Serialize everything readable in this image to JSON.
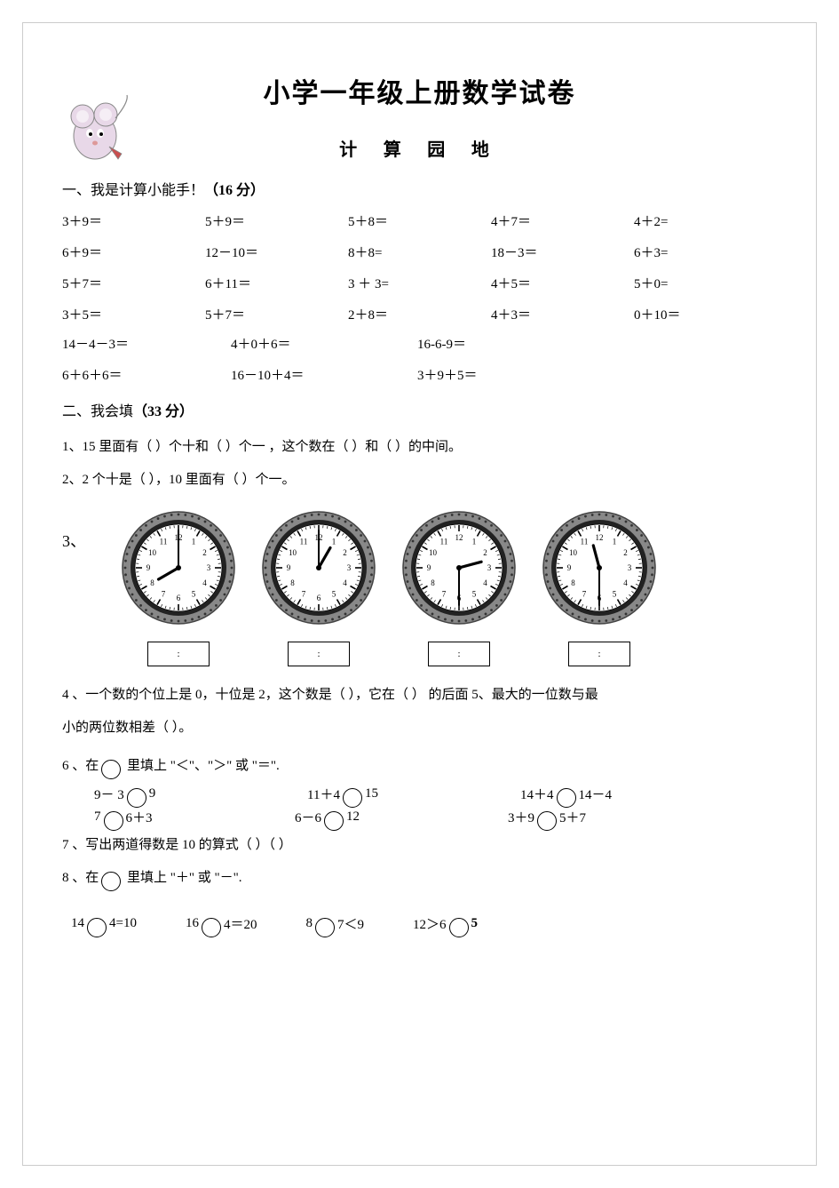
{
  "title": "小学一年级上册数学试卷",
  "subtitle": "计 算 园 地",
  "section1": {
    "heading": "一、我是计算小能手！",
    "points": "（16 分）"
  },
  "calc_r1": [
    "3＋9＝",
    "5＋9＝",
    "5＋8＝",
    "4＋7＝",
    "4＋2="
  ],
  "calc_r2": [
    "6＋9＝",
    "12－10＝",
    "8＋8=",
    "18－3＝",
    "6＋3="
  ],
  "calc_r3": [
    "5＋7＝",
    "6＋11＝",
    "3 ＋ 3=",
    "4＋5＝",
    "5＋0="
  ],
  "calc_r4": [
    "3＋5＝",
    "5＋7＝",
    "2＋8＝",
    "4＋3＝",
    "0＋10＝"
  ],
  "calc2_r1": [
    "14－4－3＝",
    "4＋0＋6＝",
    "16-6-9＝"
  ],
  "calc2_r2": [
    "6＋6＋6＝",
    "16－10＋4＝",
    "3＋9＋5＝"
  ],
  "section2": {
    "heading": "二、我会填",
    "points": "（33 分）"
  },
  "q1": "1、15 里面有（   ）个十和（   ）个一 ，这个数在（     ）和（     ）的中间。",
  "q2": "2、2 个十是（     ），10 里面有（    ）个一。",
  "q3label": "3、",
  "clocks": [
    {
      "hour_angle": 240,
      "min_angle": 0,
      "box": ":"
    },
    {
      "hour_angle": 30,
      "min_angle": 0,
      "box": ":"
    },
    {
      "hour_angle": 75,
      "min_angle": 180,
      "box": ":"
    },
    {
      "hour_angle": 345,
      "min_angle": 180,
      "box": ":"
    }
  ],
  "q4": "4 、一个数的个位上是 0，十位是 2，这个数是（     ），它在（     ）   的后面 5、最大的一位数与最",
  "q4b": "小的两位数相差（     ）。",
  "q6": "6 、在",
  "q6b": "里填上 \"＜\"、\"＞\" 或 \"＝\".",
  "cmp_r1": [
    {
      "l": "9－ 3",
      "r": "9"
    },
    {
      "l": "11＋4",
      "r": "15"
    },
    {
      "l": "14＋4",
      "r": "14－4"
    }
  ],
  "cmp_r2": [
    {
      "l": "7",
      "r": "6＋3"
    },
    {
      "l": "6－6",
      "r": "12"
    },
    {
      "l": "3＋9",
      "r": "5＋7"
    }
  ],
  "q7": "7 、写出两道得数是 10 的算式（                 ）（                 ）",
  "q8": "8 、在",
  "q8b": "里填上 \"＋\" 或 \"－\".",
  "fill_r": [
    {
      "l": "14",
      "r": "4=10"
    },
    {
      "l": "16",
      "r": "4＝20"
    },
    {
      "l": "8",
      "r": "7＜9"
    },
    {
      "l": "12＞6",
      "r": "5",
      "bold": true
    }
  ],
  "clock_style": {
    "size": 128,
    "face_bg": "#ffffff",
    "ring_color": "#555555",
    "outer_pattern": "#333333",
    "tick_color": "#000000",
    "hand_color": "#000000",
    "number_color": "#000000"
  }
}
